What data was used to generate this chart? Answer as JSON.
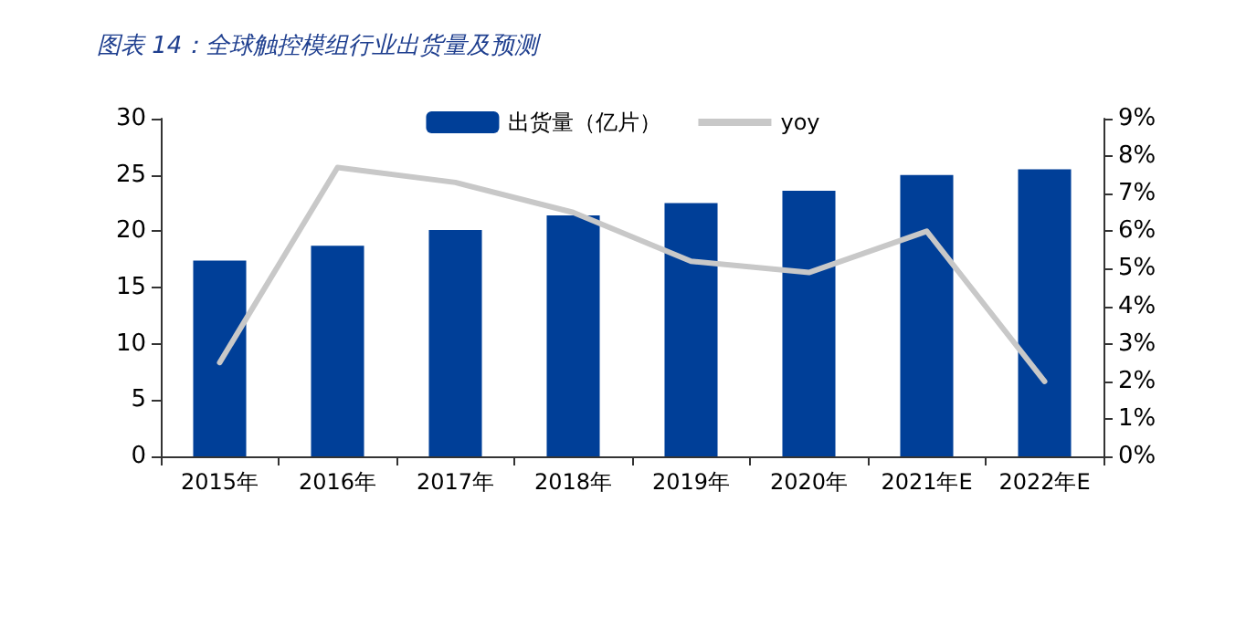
{
  "chart_data": {
    "type": "bar",
    "title": "图表 14：全球触控模组行业出货量及预测",
    "categories": [
      "2015年",
      "2016年",
      "2017年",
      "2018年",
      "2019年",
      "2020年",
      "2021年E",
      "2022年E"
    ],
    "series": [
      {
        "name": "出货量（亿片）",
        "color": "#003f98",
        "values": [
          17.4,
          18.7,
          20.1,
          21.4,
          22.5,
          23.6,
          25.0,
          25.5
        ]
      },
      {
        "name": "yoy",
        "type": "line",
        "axis": "y2",
        "color": "#c8c8c8",
        "values": [
          2.5,
          7.7,
          7.3,
          6.5,
          5.2,
          4.9,
          6.0,
          2.0
        ]
      }
    ],
    "ylim": [
      0,
      30
    ],
    "yticks": [
      0,
      5,
      10,
      15,
      20,
      25,
      30
    ],
    "y2lim": [
      0,
      9
    ],
    "y2ticks": [
      {
        "value": 0,
        "label": "0%"
      },
      {
        "value": 1,
        "label": "1%"
      },
      {
        "value": 2,
        "label": "2%"
      },
      {
        "value": 3,
        "label": "3%"
      },
      {
        "value": 4,
        "label": "4%"
      },
      {
        "value": 5,
        "label": "5%"
      },
      {
        "value": 6,
        "label": "6%"
      },
      {
        "value": 7,
        "label": "7%"
      },
      {
        "value": 8,
        "label": "8%"
      },
      {
        "value": 9,
        "label": "9%"
      }
    ],
    "legend": "top",
    "grid": false,
    "marker": "none",
    "line_style": "solid"
  }
}
